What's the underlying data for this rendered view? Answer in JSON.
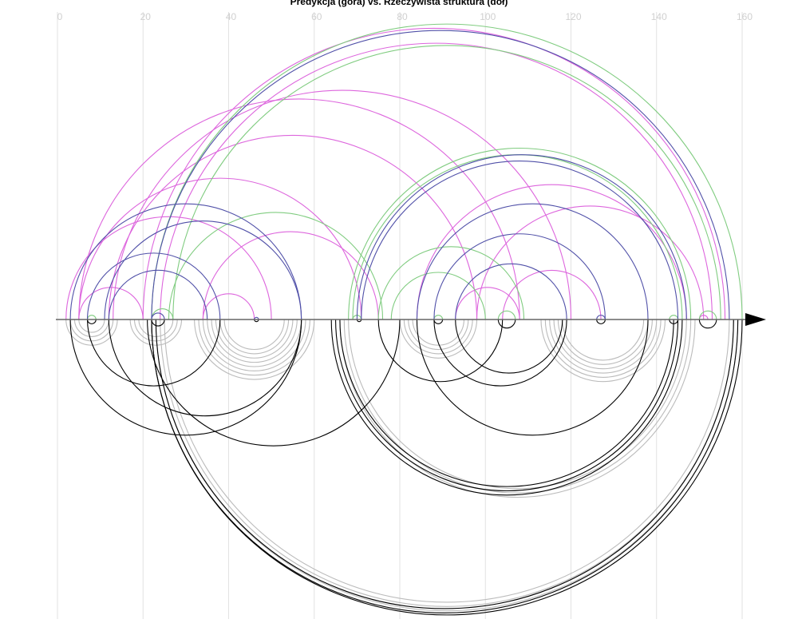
{
  "chart_data": {
    "type": "arc",
    "title": "Predykcja (góra) vs. Rzeczywista struktura (dół)",
    "xlim": [
      0,
      160
    ],
    "xticks": [
      0,
      20,
      40,
      60,
      80,
      100,
      120,
      140,
      160
    ],
    "grid": true,
    "series": [
      {
        "color": "#bbbbbb",
        "side": "bottom",
        "pairs": [
          [
            2,
            14
          ],
          [
            3,
            13
          ],
          [
            4,
            12
          ],
          [
            5,
            11
          ],
          [
            17,
            29
          ],
          [
            18,
            28
          ],
          [
            19,
            27
          ],
          [
            32,
            60
          ],
          [
            33,
            59
          ],
          [
            34,
            58
          ],
          [
            35,
            57
          ],
          [
            36,
            56
          ],
          [
            37,
            55
          ],
          [
            38,
            54
          ],
          [
            39,
            53
          ],
          [
            80,
            98
          ],
          [
            81,
            97
          ],
          [
            82,
            96
          ],
          [
            83,
            95
          ],
          [
            113,
            142
          ],
          [
            114,
            141
          ],
          [
            115,
            140
          ],
          [
            116,
            139
          ],
          [
            117,
            138
          ],
          [
            118,
            137
          ],
          [
            66,
            149
          ],
          [
            67,
            148
          ],
          [
            68,
            147
          ],
          [
            23,
            159
          ],
          [
            24,
            158
          ],
          [
            25,
            157
          ]
        ]
      },
      {
        "color": "#000000",
        "side": "bottom",
        "pairs": [
          [
            22,
            160
          ],
          [
            22,
            159
          ],
          [
            23,
            158
          ],
          [
            64,
            146
          ],
          [
            65,
            145
          ],
          [
            66,
            144
          ],
          [
            3,
            57
          ],
          [
            12,
            57
          ],
          [
            7,
            38
          ],
          [
            21,
            80
          ],
          [
            84,
            138
          ],
          [
            75,
            104
          ],
          [
            88,
            119
          ],
          [
            93,
            118
          ],
          [
            7,
            9
          ],
          [
            22,
            25
          ],
          [
            46,
            47
          ],
          [
            70,
            71
          ],
          [
            88,
            90
          ],
          [
            103,
            107
          ],
          [
            126,
            128
          ],
          [
            143,
            145
          ],
          [
            150,
            154
          ]
        ]
      },
      {
        "color": "#dd66dd",
        "side": "top",
        "pairs": [
          [
            5,
            108
          ],
          [
            13,
            120
          ],
          [
            5,
            71
          ],
          [
            20,
            156
          ],
          [
            24,
            153
          ],
          [
            12,
            98
          ],
          [
            34,
            75
          ],
          [
            5,
            20
          ],
          [
            34,
            46
          ],
          [
            98,
            151
          ],
          [
            84,
            147
          ],
          [
            104,
            127
          ],
          [
            93,
            108
          ],
          [
            2,
            50
          ],
          [
            150,
            152
          ]
        ]
      },
      {
        "color": "#80cc80",
        "side": "top",
        "pairs": [
          [
            22,
            160
          ],
          [
            27,
            155
          ],
          [
            26,
            76
          ],
          [
            68,
            148
          ],
          [
            69,
            146
          ],
          [
            75,
            109
          ],
          [
            78,
            100
          ],
          [
            22,
            27
          ],
          [
            7,
            9
          ],
          [
            103,
            107
          ],
          [
            69,
            71
          ],
          [
            88,
            90
          ],
          [
            143,
            145
          ],
          [
            150,
            154
          ]
        ]
      },
      {
        "color": "#5050a8",
        "side": "top",
        "pairs": [
          [
            22,
            157
          ],
          [
            70,
            147
          ],
          [
            71,
            145
          ],
          [
            3,
            57
          ],
          [
            11,
            57
          ],
          [
            7,
            38
          ],
          [
            12,
            35
          ],
          [
            84,
            138
          ],
          [
            88,
            128
          ],
          [
            93,
            119
          ],
          [
            46,
            47
          ],
          [
            22,
            25
          ],
          [
            126,
            128
          ]
        ]
      }
    ]
  }
}
